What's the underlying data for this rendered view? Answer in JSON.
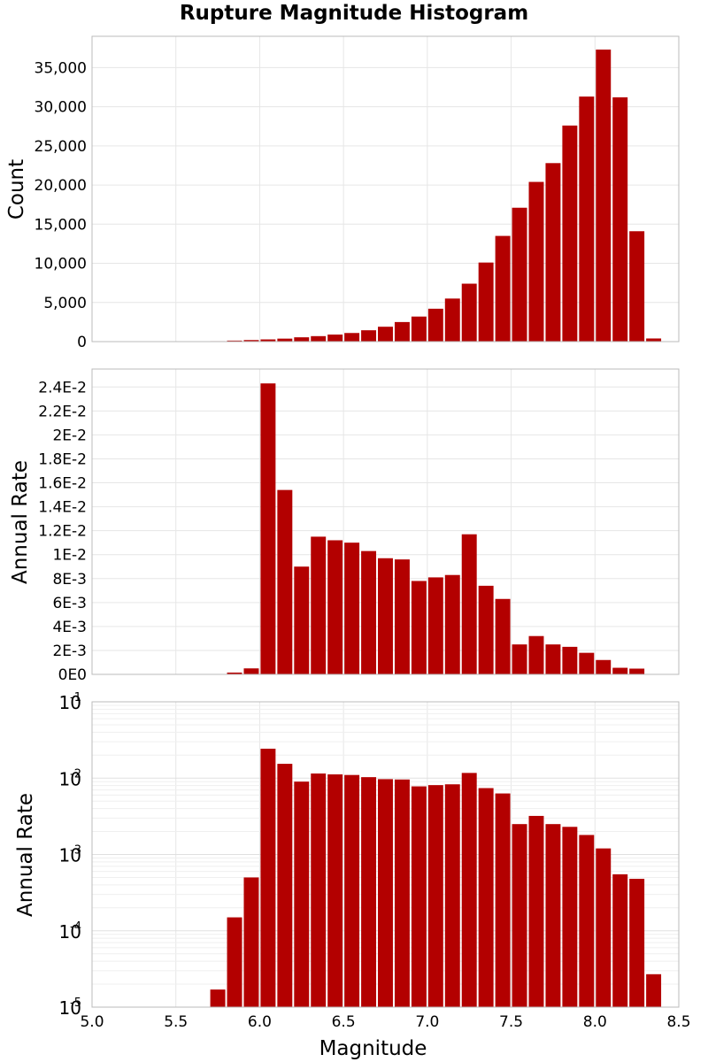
{
  "title": "Rupture Magnitude Histogram",
  "chart_data": [
    {
      "type": "bar",
      "ylabel": "Count",
      "xlim": [
        5.0,
        8.5
      ],
      "ylim": [
        0,
        39000
      ],
      "bar_color": "#b30000",
      "grid": true,
      "x": [
        5.05,
        5.15,
        5.25,
        5.35,
        5.45,
        5.55,
        5.65,
        5.75,
        5.85,
        5.95,
        6.05,
        6.15,
        6.25,
        6.35,
        6.45,
        6.55,
        6.65,
        6.75,
        6.85,
        6.95,
        7.05,
        7.15,
        7.25,
        7.35,
        7.45,
        7.55,
        7.65,
        7.75,
        7.85,
        7.95,
        8.05,
        8.15,
        8.25,
        8.35
      ],
      "values": [
        0,
        0,
        0,
        0,
        0,
        0,
        20,
        60,
        130,
        200,
        280,
        380,
        550,
        700,
        900,
        1100,
        1450,
        1900,
        2500,
        3200,
        4200,
        5500,
        7400,
        10100,
        13500,
        17100,
        20400,
        22800,
        27600,
        31300,
        37300,
        31200,
        14100,
        400
      ],
      "yticks": [
        0,
        5000,
        10000,
        15000,
        20000,
        25000,
        30000,
        35000
      ],
      "ytick_labels": [
        "0",
        "5,000",
        "10,000",
        "15,000",
        "20,000",
        "25,000",
        "30,000",
        "35,000"
      ]
    },
    {
      "type": "bar",
      "ylabel": "Annual Rate",
      "xlim": [
        5.0,
        8.5
      ],
      "ylim": [
        0,
        0.0255
      ],
      "bar_color": "#b30000",
      "grid": true,
      "x": [
        5.05,
        5.15,
        5.25,
        5.35,
        5.45,
        5.55,
        5.65,
        5.75,
        5.85,
        5.95,
        6.05,
        6.15,
        6.25,
        6.35,
        6.45,
        6.55,
        6.65,
        6.75,
        6.85,
        6.95,
        7.05,
        7.15,
        7.25,
        7.35,
        7.45,
        7.55,
        7.65,
        7.75,
        7.85,
        7.95,
        8.05,
        8.15,
        8.25,
        8.35
      ],
      "values": [
        0,
        0,
        0,
        0,
        0,
        0,
        0,
        1.7e-05,
        0.00015,
        0.0005,
        0.0243,
        0.0154,
        0.009,
        0.0115,
        0.0112,
        0.011,
        0.0103,
        0.0097,
        0.0096,
        0.0078,
        0.0081,
        0.0083,
        0.0117,
        0.0074,
        0.0063,
        0.0025,
        0.0032,
        0.0025,
        0.0023,
        0.0018,
        0.0012,
        0.00055,
        0.00048,
        2.7e-05
      ],
      "yticks": [
        0,
        0.002,
        0.004,
        0.006,
        0.008,
        0.01,
        0.012,
        0.014,
        0.016,
        0.018,
        0.02,
        0.022,
        0.024
      ],
      "ytick_labels": [
        "0E0",
        "2E-3",
        "4E-3",
        "6E-3",
        "8E-3",
        "1E-2",
        "1.2E-2",
        "1.4E-2",
        "1.6E-2",
        "1.8E-2",
        "2E-2",
        "2.2E-2",
        "2.4E-2"
      ]
    },
    {
      "type": "bar",
      "ylabel": "Annual Rate",
      "xlabel": "Magnitude",
      "scale_y": "log",
      "xlim": [
        5.0,
        8.5
      ],
      "ylim": [
        1e-05,
        0.1
      ],
      "bar_color": "#b30000",
      "grid": true,
      "x": [
        5.05,
        5.15,
        5.25,
        5.35,
        5.45,
        5.55,
        5.65,
        5.75,
        5.85,
        5.95,
        6.05,
        6.15,
        6.25,
        6.35,
        6.45,
        6.55,
        6.65,
        6.75,
        6.85,
        6.95,
        7.05,
        7.15,
        7.25,
        7.35,
        7.45,
        7.55,
        7.65,
        7.75,
        7.85,
        7.95,
        8.05,
        8.15,
        8.25,
        8.35
      ],
      "values": [
        0,
        0,
        0,
        0,
        0,
        0,
        0,
        1.7e-05,
        0.00015,
        0.0005,
        0.0243,
        0.0154,
        0.009,
        0.0115,
        0.0112,
        0.011,
        0.0103,
        0.0097,
        0.0096,
        0.0078,
        0.0081,
        0.0083,
        0.0117,
        0.0074,
        0.0063,
        0.0025,
        0.0032,
        0.0025,
        0.0023,
        0.0018,
        0.0012,
        0.00055,
        0.00048,
        2.7e-05
      ],
      "ytick_base": "10",
      "ytick_exponents": [
        "-5",
        "-4",
        "-3",
        "-2",
        "-1"
      ],
      "xticks": [
        5.0,
        5.5,
        6.0,
        6.5,
        7.0,
        7.5,
        8.0,
        8.5
      ],
      "xtick_labels": [
        "5.0",
        "5.5",
        "6.0",
        "6.5",
        "7.0",
        "7.5",
        "8.0",
        "8.5"
      ]
    }
  ]
}
